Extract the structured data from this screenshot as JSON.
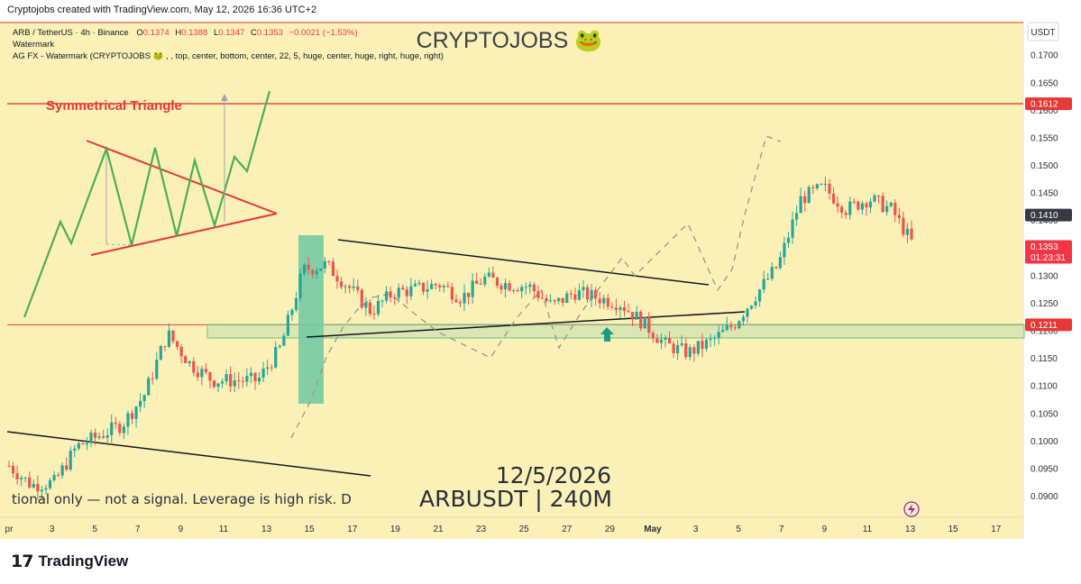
{
  "header": {
    "caption": "Cryptojobs created with TradingView.com, May 12, 2026 16:36 UTC+2"
  },
  "legend": {
    "symbol": "ARB / TetherUS · 4h · Binance",
    "open_label": "O",
    "open": "0.1374",
    "high_label": "H",
    "high": "0.1388",
    "low_label": "L",
    "low": "0.1347",
    "close_label": "C",
    "close": "0.1353",
    "change": "−0.0021 (−1.53%)",
    "line2": "Watermark",
    "line3": "AG FX - Watermark (CRYPTOJOBS 🐸 , , top, center, bottom, center, 22, 5, huge, center, huge, right, huge, right)"
  },
  "watermark": {
    "title": "CRYPTOJOBS 🐸",
    "date": "12/5/2026",
    "pair": "ARBUSDT | 240M",
    "disclaimer": "tional only — not a signal. Leverage is high risk. D"
  },
  "annotations": {
    "triangle_label": "Symmetrical Triangle"
  },
  "price_axis": {
    "currency": "USDT",
    "ticks": [
      "0.1700",
      "0.1650",
      "0.1600",
      "0.1550",
      "0.1500",
      "0.1450",
      "0.1400",
      "0.1350",
      "0.1300",
      "0.1250",
      "0.1200",
      "0.1150",
      "0.1100",
      "0.1050",
      "0.1000",
      "0.0950",
      "0.0900"
    ],
    "markers": [
      {
        "value": 0.1612,
        "label": "0.1612",
        "color": "#e53935"
      },
      {
        "value": 0.141,
        "label": "0.1410",
        "color": "#363a45"
      },
      {
        "value": 0.1353,
        "label": "0.1353",
        "label2": "01:23:31",
        "color": "#f23645"
      },
      {
        "value": 0.1211,
        "label": "0.1211",
        "color": "#e53935"
      }
    ]
  },
  "time_axis": {
    "labels": [
      "pr",
      "3",
      "5",
      "7",
      "9",
      "11",
      "13",
      "15",
      "17",
      "19",
      "21",
      "23",
      "25",
      "27",
      "29",
      "May",
      "3",
      "5",
      "7",
      "9",
      "11",
      "13",
      "15",
      "17"
    ]
  },
  "colors": {
    "background": "#fbf1b7",
    "up": "#26a69a",
    "down": "#ef5350",
    "resistance": "#e53935",
    "support_box": "#7fc69b",
    "pattern_green": "#4caf50"
  },
  "footer": {
    "logo_mark": "17",
    "logo_text": "TradingView"
  },
  "chart_data": {
    "type": "candlestick",
    "symbol": "ARB / TetherUS",
    "timeframe": "4h",
    "exchange": "Binance",
    "ylim": [
      0.0878,
      0.1738
    ],
    "horizontal_levels": [
      0.1612,
      0.1211
    ],
    "path_points": [
      {
        "date": "Apr 1",
        "price": 0.0955
      },
      {
        "date": "Apr 4",
        "price": 0.092
      },
      {
        "date": "Apr 6",
        "price": 0.0925
      },
      {
        "date": "Apr 7",
        "price": 0.099
      },
      {
        "date": "Apr 8",
        "price": 0.101
      },
      {
        "date": "Apr 9",
        "price": 0.103
      },
      {
        "date": "Apr 10",
        "price": 0.1085
      },
      {
        "date": "Apr 11",
        "price": 0.1195
      },
      {
        "date": "Apr 12",
        "price": 0.114
      },
      {
        "date": "Apr 13",
        "price": 0.111
      },
      {
        "date": "Apr 14",
        "price": 0.111
      },
      {
        "date": "Apr 15",
        "price": 0.111
      },
      {
        "date": "Apr 16",
        "price": 0.117
      },
      {
        "date": "Apr 17",
        "price": 0.131
      },
      {
        "date": "Apr 18",
        "price": 0.132
      },
      {
        "date": "Apr 19",
        "price": 0.128
      },
      {
        "date": "Apr 20",
        "price": 0.1235
      },
      {
        "date": "Apr 21",
        "price": 0.127
      },
      {
        "date": "Apr 22",
        "price": 0.1275
      },
      {
        "date": "Apr 23",
        "price": 0.1285
      },
      {
        "date": "Apr 24",
        "price": 0.126
      },
      {
        "date": "Apr 25",
        "price": 0.1295
      },
      {
        "date": "Apr 26",
        "price": 0.1285
      },
      {
        "date": "Apr 27",
        "price": 0.128
      },
      {
        "date": "Apr 28",
        "price": 0.1245
      },
      {
        "date": "Apr 29",
        "price": 0.127
      },
      {
        "date": "Apr 30",
        "price": 0.126
      },
      {
        "date": "May 1",
        "price": 0.125
      },
      {
        "date": "May 2",
        "price": 0.1215
      },
      {
        "date": "May 3",
        "price": 0.1175
      },
      {
        "date": "May 4",
        "price": 0.116
      },
      {
        "date": "May 5",
        "price": 0.118
      },
      {
        "date": "May 6",
        "price": 0.121
      },
      {
        "date": "May 7",
        "price": 0.1265
      },
      {
        "date": "May 8",
        "price": 0.132
      },
      {
        "date": "May 8.5",
        "price": 0.144
      },
      {
        "date": "May 9",
        "price": 0.146
      },
      {
        "date": "May 10",
        "price": 0.142
      },
      {
        "date": "May 11",
        "price": 0.144
      },
      {
        "date": "May 11.5",
        "price": 0.142
      },
      {
        "date": "May 12",
        "price": 0.1353
      }
    ]
  }
}
